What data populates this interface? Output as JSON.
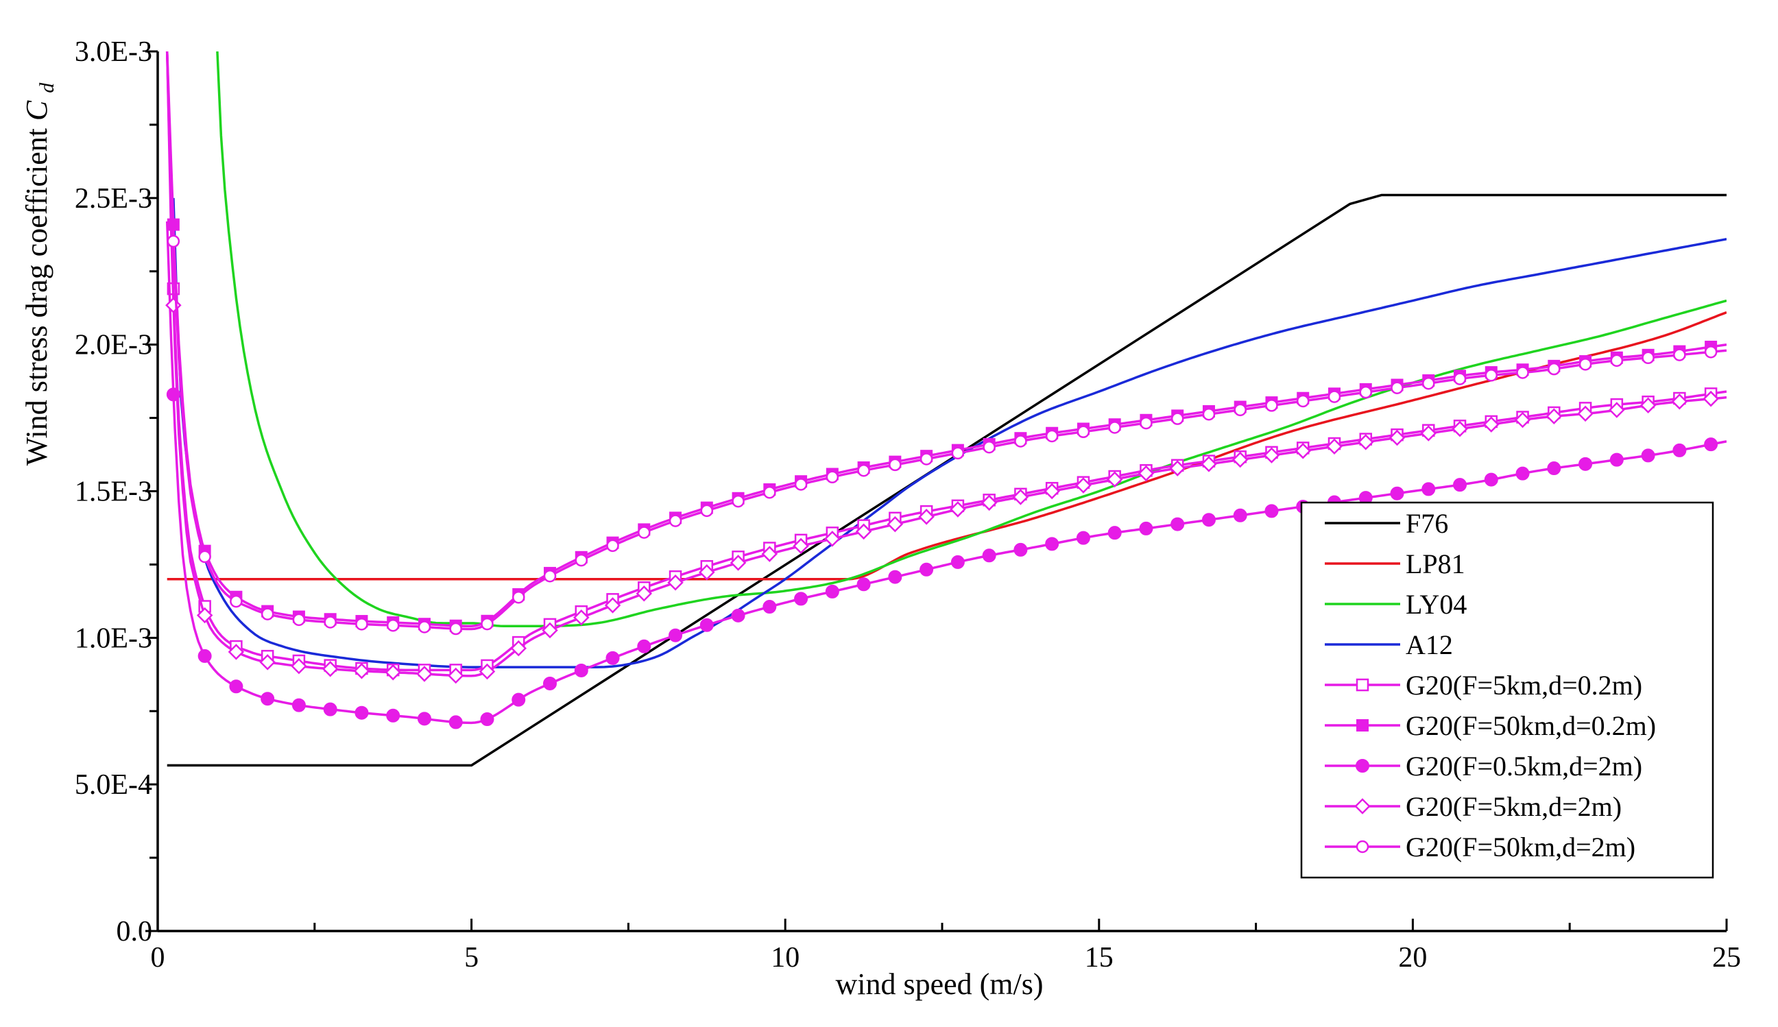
{
  "chart_data": {
    "type": "line",
    "title": "",
    "xlabel": "wind speed (m/s)",
    "ylabel_main": "Wind stress drag coefficient ",
    "ylabel_symbol": "C",
    "ylabel_subscript": "d",
    "xlim": [
      0,
      25
    ],
    "ylim": [
      0,
      0.003
    ],
    "x_ticks": [
      0,
      5,
      10,
      15,
      20,
      25
    ],
    "x_tick_labels": [
      "0",
      "5",
      "10",
      "15",
      "20",
      "25"
    ],
    "x_minor_step": 2.5,
    "y_ticks": [
      0,
      0.0005,
      0.001,
      0.0015,
      0.002,
      0.0025,
      0.003
    ],
    "y_tick_labels": [
      "0.0",
      "5.0E-4",
      "1.0E-3",
      "1.5E-3",
      "2.0E-3",
      "2.5E-3",
      "3.0E-3"
    ],
    "y_minor_step": 0.00025,
    "grid": false,
    "legend_position": "bottom-right",
    "series": [
      {
        "name": "F76",
        "color": "#000000",
        "marker": "none",
        "x": [
          0.15,
          5,
          19,
          19.5,
          25
        ],
        "y": [
          0.000565,
          0.000565,
          0.00248,
          0.00251,
          0.00251
        ]
      },
      {
        "name": "LP81",
        "color": "#e8141e",
        "marker": "none",
        "x": [
          0.15,
          11,
          12,
          14,
          16,
          18,
          20,
          22,
          24,
          25
        ],
        "y": [
          0.0012,
          0.0012,
          0.00129,
          0.00141,
          0.00155,
          0.0017,
          0.00181,
          0.00192,
          0.00203,
          0.00211
        ]
      },
      {
        "name": "LY04",
        "color": "#1fd41f",
        "marker": "none",
        "x": [
          0.95,
          1.0,
          1.2,
          1.5,
          2,
          2.5,
          3,
          3.5,
          4,
          4.5,
          5,
          5.5,
          6,
          7,
          8,
          9,
          10,
          11,
          12,
          13,
          14,
          15,
          16,
          17,
          18,
          19,
          20,
          21,
          22,
          23,
          24,
          25
        ],
        "y": [
          0.003,
          0.00275,
          0.00225,
          0.00183,
          0.00149,
          0.00129,
          0.00117,
          0.0011,
          0.00107,
          0.00105,
          0.00105,
          0.00104,
          0.00104,
          0.00105,
          0.0011,
          0.00114,
          0.00116,
          0.0012,
          0.00128,
          0.00135,
          0.00143,
          0.0015,
          0.00158,
          0.00165,
          0.00172,
          0.0018,
          0.00187,
          0.00193,
          0.00198,
          0.00203,
          0.00209,
          0.00215
        ]
      },
      {
        "name": "A12",
        "color": "#1a2ad8",
        "marker": "none",
        "x": [
          0.25,
          0.35,
          0.5,
          0.7,
          1,
          1.5,
          2,
          3,
          4,
          5,
          6,
          7,
          7.5,
          8,
          8.5,
          9,
          9.5,
          10,
          10.5,
          11,
          11.5,
          12,
          13,
          14,
          15,
          16,
          17,
          18,
          19,
          20,
          21,
          22,
          23,
          24,
          25
        ],
        "y": [
          0.0025,
          0.0019,
          0.00155,
          0.00131,
          0.00115,
          0.00102,
          0.00097,
          0.00093,
          0.00091,
          0.0009,
          0.0009,
          0.0009,
          0.00091,
          0.00094,
          0.001,
          0.00106,
          0.00113,
          0.0012,
          0.00128,
          0.00136,
          0.00144,
          0.00152,
          0.00165,
          0.00176,
          0.00184,
          0.00192,
          0.00199,
          0.00205,
          0.0021,
          0.00215,
          0.0022,
          0.00224,
          0.00228,
          0.00232,
          0.00236
        ]
      },
      {
        "name": "G20(F=5km,d=0.2m)",
        "color": "#e61ce6",
        "marker": "open-square",
        "x": [
          0.15,
          0.2,
          0.3,
          0.4,
          0.5,
          0.6,
          0.7,
          0.8,
          1,
          1.5,
          2,
          3,
          4,
          5,
          6,
          7,
          8,
          9,
          10,
          11,
          12,
          13,
          14,
          15,
          16,
          17,
          18,
          19,
          20,
          21,
          22,
          23,
          24,
          25
        ],
        "y": [
          0.003,
          0.00255,
          0.0019,
          0.00155,
          0.00133,
          0.00122,
          0.00114,
          0.00108,
          0.00101,
          0.00095,
          0.00093,
          0.0009,
          0.00089,
          0.00089,
          0.00102,
          0.00111,
          0.00119,
          0.00126,
          0.00132,
          0.00137,
          0.00142,
          0.00146,
          0.0015,
          0.00154,
          0.00158,
          0.00161,
          0.00164,
          0.00167,
          0.0017,
          0.00173,
          0.00176,
          0.00179,
          0.00181,
          0.00184
        ]
      },
      {
        "name": "G20(F=50km,d=0.2m)",
        "color": "#e61ce6",
        "marker": "filled-square",
        "x": [
          0.15,
          0.2,
          0.3,
          0.4,
          0.5,
          0.6,
          0.7,
          0.8,
          1,
          1.5,
          2,
          3,
          4,
          5,
          6,
          7,
          8,
          9,
          10,
          11,
          12,
          13,
          14,
          15,
          16,
          17,
          18,
          19,
          20,
          21,
          22,
          23,
          24,
          25
        ],
        "y": [
          0.003,
          0.0027,
          0.00215,
          0.0018,
          0.00156,
          0.00143,
          0.00133,
          0.00127,
          0.00119,
          0.00111,
          0.00108,
          0.00106,
          0.00105,
          0.00104,
          0.00119,
          0.0013,
          0.00139,
          0.00146,
          0.00152,
          0.00157,
          0.00161,
          0.00165,
          0.00169,
          0.00172,
          0.00175,
          0.00178,
          0.00181,
          0.00184,
          0.00187,
          0.0019,
          0.00192,
          0.00195,
          0.00197,
          0.002
        ]
      },
      {
        "name": "G20(F=0.5km,d=2m)",
        "color": "#e61ce6",
        "marker": "filled-circle",
        "x": [
          0.15,
          0.2,
          0.3,
          0.4,
          0.5,
          0.6,
          0.7,
          0.8,
          1,
          1.5,
          2,
          3,
          4,
          5,
          6,
          7,
          8,
          9,
          10,
          11,
          12,
          13,
          14,
          15,
          16,
          17,
          18,
          19,
          20,
          21,
          22,
          23,
          24,
          25
        ],
        "y": [
          0.00242,
          0.0021,
          0.0016,
          0.00128,
          0.00112,
          0.00102,
          0.00096,
          0.00092,
          0.00087,
          0.00081,
          0.00078,
          0.00075,
          0.00073,
          0.00071,
          0.00082,
          0.00091,
          0.00099,
          0.00106,
          0.00112,
          0.00117,
          0.00122,
          0.00127,
          0.00131,
          0.00135,
          0.00138,
          0.00141,
          0.00144,
          0.00147,
          0.0015,
          0.00153,
          0.00157,
          0.0016,
          0.00163,
          0.00167
        ]
      },
      {
        "name": "G20(F=5km,d=2m)",
        "color": "#e61ce6",
        "marker": "open-diamond",
        "x": [
          0.15,
          0.2,
          0.3,
          0.4,
          0.5,
          0.6,
          0.7,
          0.8,
          1,
          1.5,
          2,
          3,
          4,
          5,
          6,
          7,
          8,
          9,
          10,
          11,
          12,
          13,
          14,
          15,
          16,
          17,
          18,
          19,
          20,
          21,
          22,
          23,
          24,
          25
        ],
        "y": [
          0.003,
          0.0025,
          0.00185,
          0.0015,
          0.00129,
          0.00119,
          0.00111,
          0.00105,
          0.00099,
          0.00093,
          0.00091,
          0.00089,
          0.00088,
          0.00087,
          0.001,
          0.00109,
          0.00117,
          0.00124,
          0.0013,
          0.00135,
          0.0014,
          0.00145,
          0.00149,
          0.00153,
          0.00157,
          0.0016,
          0.00163,
          0.00166,
          0.00169,
          0.00172,
          0.00175,
          0.00177,
          0.0018,
          0.00182
        ]
      },
      {
        "name": "G20(F=50km,d=2m)",
        "color": "#e61ce6",
        "marker": "open-circle",
        "x": [
          0.15,
          0.2,
          0.3,
          0.4,
          0.5,
          0.6,
          0.7,
          0.8,
          1,
          1.5,
          2,
          3,
          4,
          5,
          6,
          7,
          8,
          9,
          10,
          11,
          12,
          13,
          14,
          15,
          16,
          17,
          18,
          19,
          20,
          21,
          22,
          23,
          24,
          25
        ],
        "y": [
          0.003,
          0.00265,
          0.0021,
          0.00176,
          0.00153,
          0.0014,
          0.00131,
          0.00125,
          0.00117,
          0.0011,
          0.00107,
          0.00105,
          0.00104,
          0.00103,
          0.00118,
          0.00129,
          0.00138,
          0.00145,
          0.00151,
          0.00156,
          0.0016,
          0.00164,
          0.00168,
          0.00171,
          0.00174,
          0.00177,
          0.0018,
          0.00183,
          0.00186,
          0.00189,
          0.00191,
          0.00194,
          0.00196,
          0.00198
        ]
      }
    ]
  }
}
